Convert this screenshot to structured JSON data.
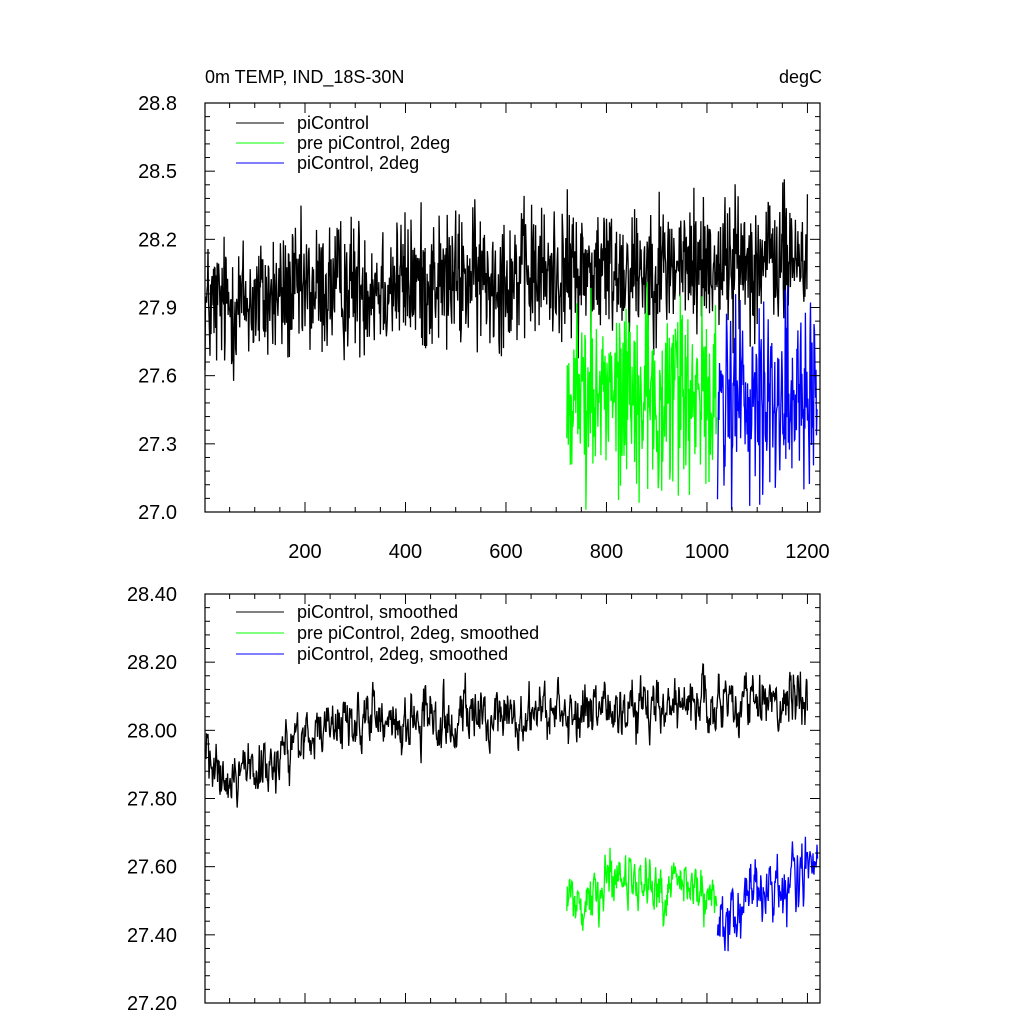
{
  "chart_data": [
    {
      "type": "line",
      "title": "0m TEMP, IND_18S-30N",
      "units": "degC",
      "xlim": [
        1,
        1225
      ],
      "ylim": [
        27.0,
        28.8
      ],
      "x_ticks": [
        200,
        400,
        600,
        800,
        1000,
        1200
      ],
      "x_tick_labels": [
        "200",
        "400",
        "600",
        "800",
        "1000",
        "1200"
      ],
      "y_ticks": [
        27.0,
        27.3,
        27.6,
        27.9,
        28.2,
        28.5,
        28.8
      ],
      "y_tick_labels": [
        "27.0",
        "27.3",
        "27.6",
        "27.9",
        "28.2",
        "28.5",
        "28.8"
      ],
      "legend_position": "top-left",
      "series": [
        {
          "name": "piControl",
          "color": "#000000",
          "x_range": [
            1,
            1200
          ],
          "level_points": [
            [
              1,
              27.9
            ],
            [
              100,
              27.93
            ],
            [
              300,
              28.0
            ],
            [
              500,
              28.02
            ],
            [
              700,
              28.05
            ],
            [
              900,
              28.08
            ],
            [
              1200,
              28.12
            ]
          ],
          "amplitude": 0.15
        },
        {
          "name": "pre piControl, 2deg",
          "color": "#00ff00",
          "x_range": [
            721,
            1020
          ],
          "level_points": [
            [
              721,
              27.52
            ],
            [
              1020,
              27.52
            ]
          ],
          "amplitude": 0.2
        },
        {
          "name": "piControl, 2deg",
          "color": "#0000ff",
          "x_range": [
            1021,
            1220
          ],
          "level_points": [
            [
              1021,
              27.48
            ],
            [
              1220,
              27.52
            ]
          ],
          "amplitude": 0.2
        }
      ]
    },
    {
      "type": "line",
      "xlim": [
        1,
        1225
      ],
      "ylim": [
        27.2,
        28.4
      ],
      "x_ticks": [
        200,
        400,
        600,
        800,
        1000,
        1200
      ],
      "x_tick_labels": [],
      "y_ticks": [
        27.2,
        27.4,
        27.6,
        27.8,
        28.0,
        28.2,
        28.4
      ],
      "y_tick_labels": [
        "27.20",
        "27.40",
        "27.60",
        "27.80",
        "28.00",
        "28.20",
        "28.40"
      ],
      "legend_position": "top-left",
      "series": [
        {
          "name": "piControl, smoothed",
          "color": "#000000",
          "x_range": [
            1,
            1200
          ],
          "level_points": [
            [
              1,
              27.98
            ],
            [
              20,
              27.85
            ],
            [
              60,
              27.86
            ],
            [
              150,
              27.92
            ],
            [
              250,
              28.02
            ],
            [
              450,
              28.03
            ],
            [
              650,
              28.05
            ],
            [
              850,
              28.06
            ],
            [
              1050,
              28.07
            ],
            [
              1200,
              28.12
            ]
          ],
          "amplitude": 0.055
        },
        {
          "name": "pre piControl, 2deg, smoothed",
          "color": "#00ff00",
          "x_range": [
            721,
            1020
          ],
          "level_points": [
            [
              721,
              27.48
            ],
            [
              850,
              27.55
            ],
            [
              1020,
              27.53
            ]
          ],
          "amplitude": 0.06
        },
        {
          "name": "piControl, 2deg, smoothed",
          "color": "#0000ff",
          "x_range": [
            1021,
            1220
          ],
          "level_points": [
            [
              1021,
              27.46
            ],
            [
              1100,
              27.52
            ],
            [
              1220,
              27.58
            ]
          ],
          "amplitude": 0.07
        }
      ]
    }
  ]
}
